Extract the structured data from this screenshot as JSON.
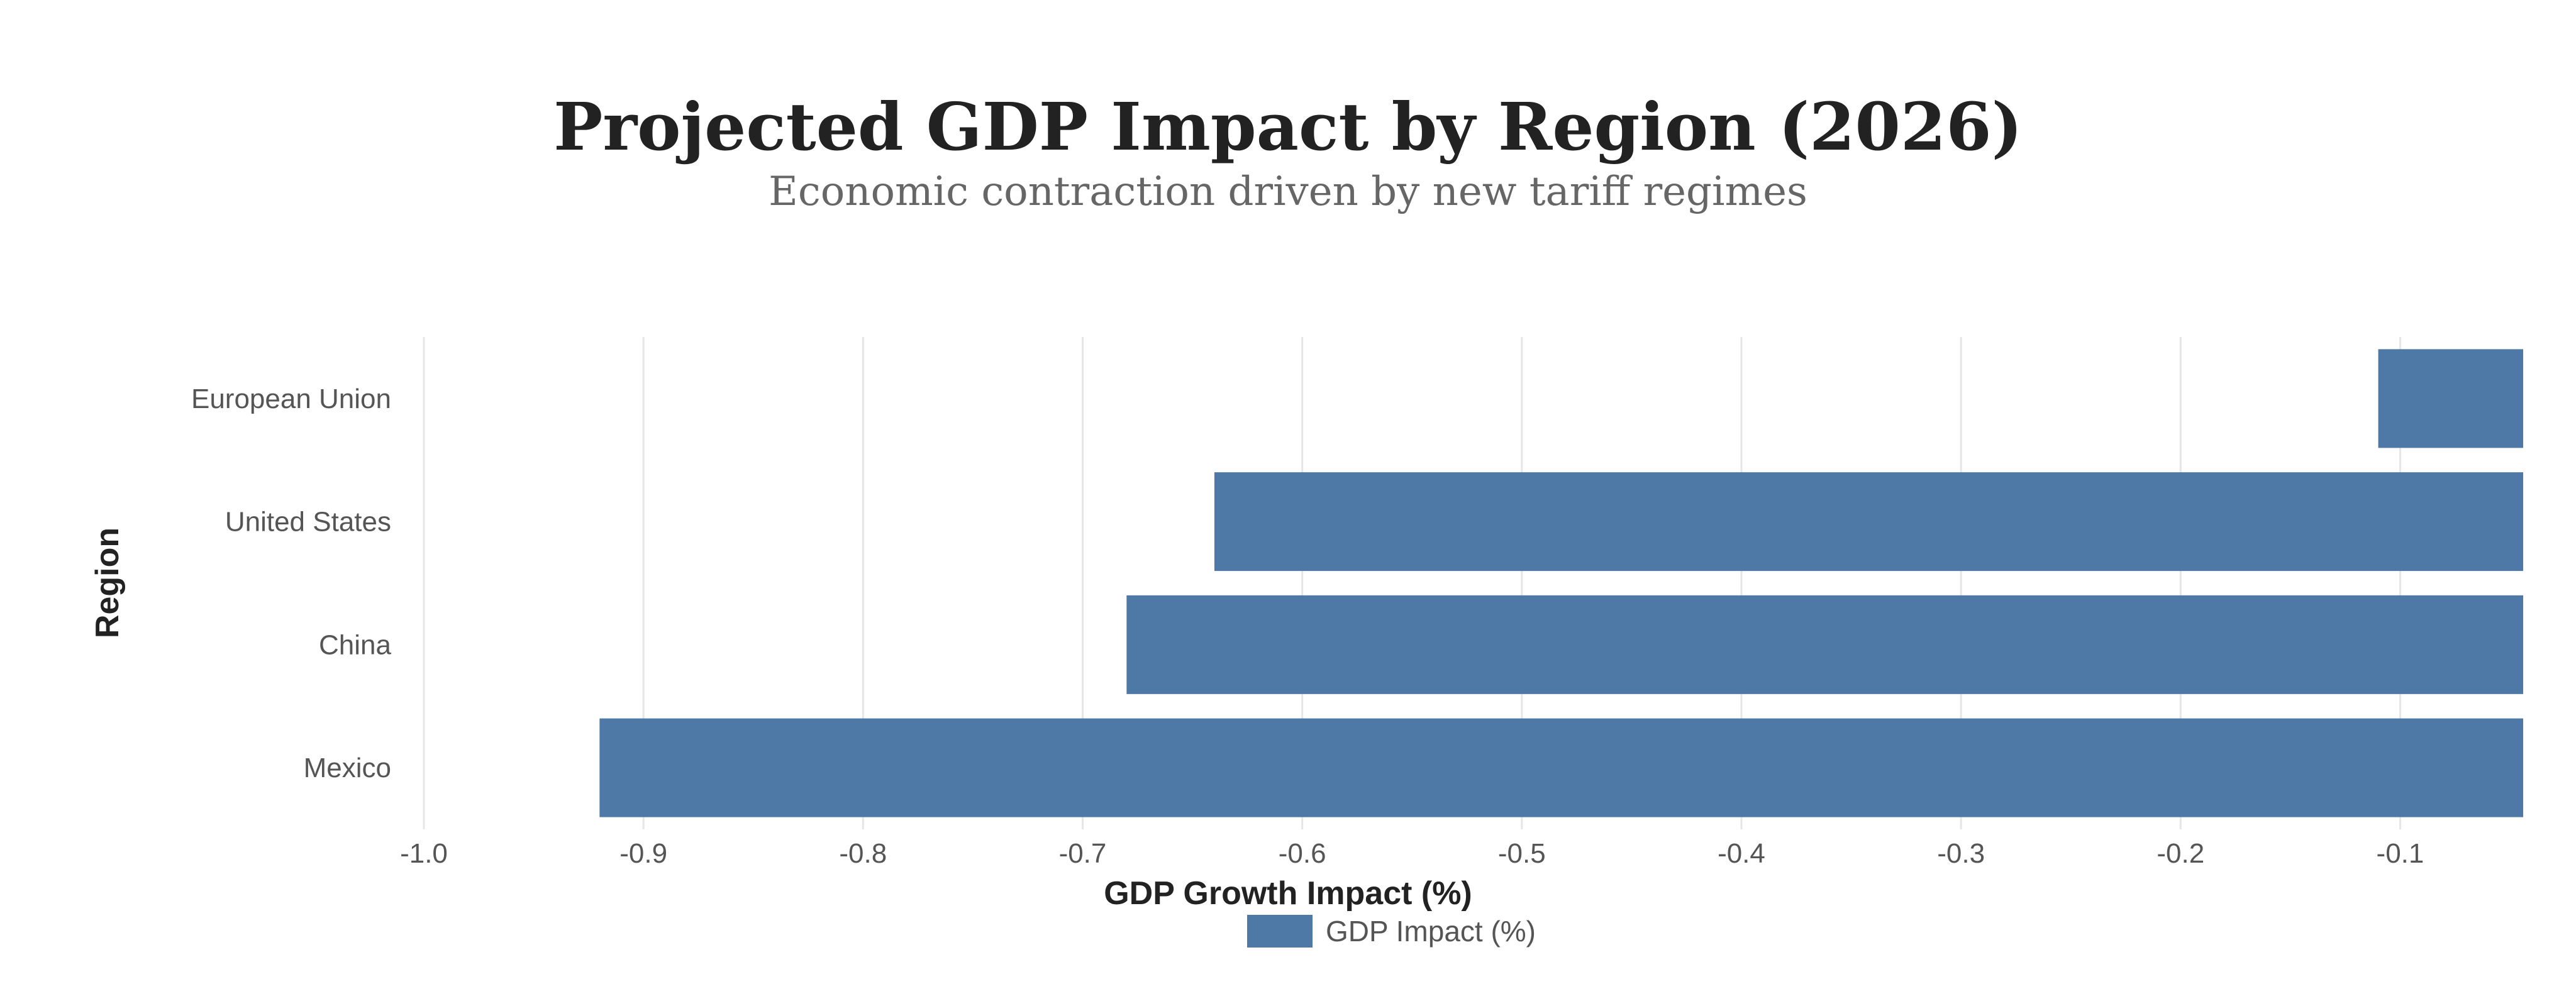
{
  "chart_data": {
    "type": "bar",
    "orientation": "horizontal",
    "title": "Projected GDP Impact by Region (2026)",
    "subtitle": "Economic contraction driven by new tariff regimes",
    "xlabel": "GDP Growth Impact (%)",
    "ylabel": "Region",
    "categories": [
      "European Union",
      "United States",
      "China",
      "Mexico"
    ],
    "series": [
      {
        "name": "GDP Impact (%)",
        "values": [
          -0.11,
          -0.64,
          -0.68,
          -0.92
        ],
        "color": "#4e79a7"
      }
    ],
    "xlim": [
      -1.0,
      -0.044
    ],
    "xticks": [
      -1.0,
      -0.9,
      -0.8,
      -0.7,
      -0.6,
      -0.5,
      -0.4,
      -0.3,
      -0.2,
      -0.1
    ],
    "xtick_labels": [
      "-1.0",
      "-0.9",
      "-0.8",
      "-0.7",
      "-0.6",
      "-0.5",
      "-0.4",
      "-0.3",
      "-0.2",
      "-0.1"
    ],
    "grid": true,
    "legend": {
      "placement": "bottom",
      "entries": [
        "GDP Impact (%)"
      ]
    }
  }
}
